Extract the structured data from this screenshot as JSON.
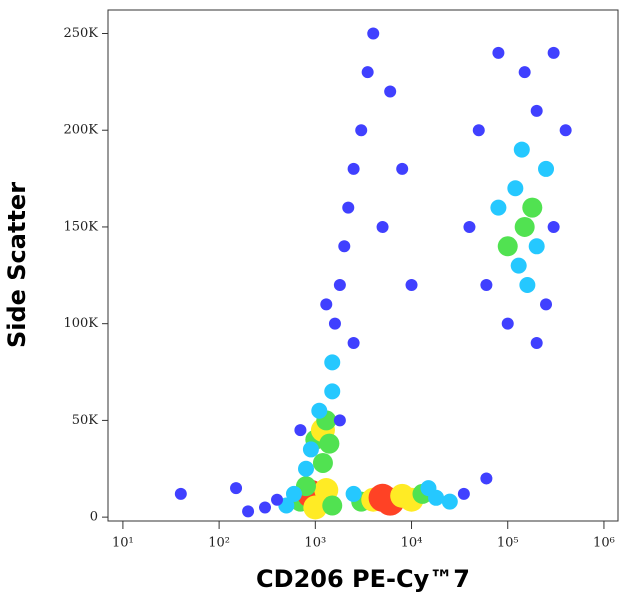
{
  "chart_data": {
    "type": "density-scatter",
    "x_label": "CD206 PE-Cy™7",
    "y_label": "Side Scatter",
    "x_scale": "log",
    "xlim": [
      7,
      1400000
    ],
    "xticks": [
      {
        "value": 10,
        "label": "10¹"
      },
      {
        "value": 100,
        "label": "10²"
      },
      {
        "value": 1000,
        "label": "10³"
      },
      {
        "value": 10000,
        "label": "10⁴"
      },
      {
        "value": 100000,
        "label": "10⁵"
      },
      {
        "value": 1000000,
        "label": "10⁶"
      }
    ],
    "ylim": [
      -2000,
      262144
    ],
    "yticks": [
      0,
      {
        "value": 50000,
        "label": "50K"
      },
      {
        "value": 100000,
        "label": "100K"
      },
      {
        "value": 150000,
        "label": "150K"
      },
      {
        "value": 200000,
        "label": "200K"
      },
      {
        "value": 250000,
        "label": "250K"
      }
    ],
    "density_colors": [
      "#1f1fff",
      "#00bfff",
      "#33dd33",
      "#ffe800",
      "#ff2200"
    ],
    "x": [
      700,
      900,
      1100,
      1300,
      800,
      1000,
      1500,
      600,
      500,
      400,
      300,
      3000,
      4000,
      5000,
      6000,
      8000,
      10000,
      13000,
      18000,
      25000,
      35000,
      2500,
      15000,
      1000,
      1200,
      1300,
      1100,
      900,
      1400,
      800,
      1200,
      1500,
      700,
      1800,
      1500,
      1600,
      1800,
      2000,
      2200,
      2500,
      3000,
      3500,
      4000,
      2500,
      1300,
      5000,
      8000,
      10000,
      6000,
      100000,
      150000,
      130000,
      180000,
      120000,
      200000,
      160000,
      250000,
      80000,
      140000,
      200000,
      300000,
      60000,
      100000,
      250000,
      150000,
      80000,
      300000,
      50000,
      40000,
      400000,
      200000,
      200,
      150,
      60000,
      40
    ],
    "y": [
      8000,
      12000,
      9000,
      14000,
      16000,
      5000,
      6000,
      12000,
      6000,
      9000,
      5000,
      8000,
      9000,
      10000,
      8000,
      11000,
      9000,
      12000,
      10000,
      8000,
      12000,
      12000,
      15000,
      40000,
      45000,
      50000,
      55000,
      35000,
      38000,
      25000,
      28000,
      65000,
      45000,
      50000,
      80000,
      100000,
      120000,
      140000,
      160000,
      180000,
      200000,
      230000,
      250000,
      90000,
      110000,
      150000,
      180000,
      120000,
      220000,
      140000,
      150000,
      130000,
      160000,
      170000,
      140000,
      120000,
      180000,
      160000,
      190000,
      210000,
      150000,
      120000,
      100000,
      110000,
      230000,
      240000,
      240000,
      200000,
      150000,
      200000,
      90000,
      3000,
      15000,
      20000,
      12000
    ],
    "density": [
      3,
      5,
      5,
      4,
      3,
      4,
      3,
      2,
      2,
      1,
      1,
      3,
      4,
      5,
      5,
      4,
      4,
      3,
      2,
      2,
      1,
      2,
      2,
      3,
      4,
      3,
      2,
      2,
      3,
      2,
      3,
      2,
      1,
      1,
      2,
      1,
      1,
      1,
      1,
      1,
      1,
      1,
      1,
      1,
      1,
      1,
      1,
      1,
      1,
      3,
      3,
      2,
      3,
      2,
      2,
      2,
      2,
      2,
      2,
      1,
      1,
      1,
      1,
      1,
      1,
      1,
      1,
      1,
      1,
      1,
      1,
      1,
      1,
      1,
      1
    ]
  }
}
